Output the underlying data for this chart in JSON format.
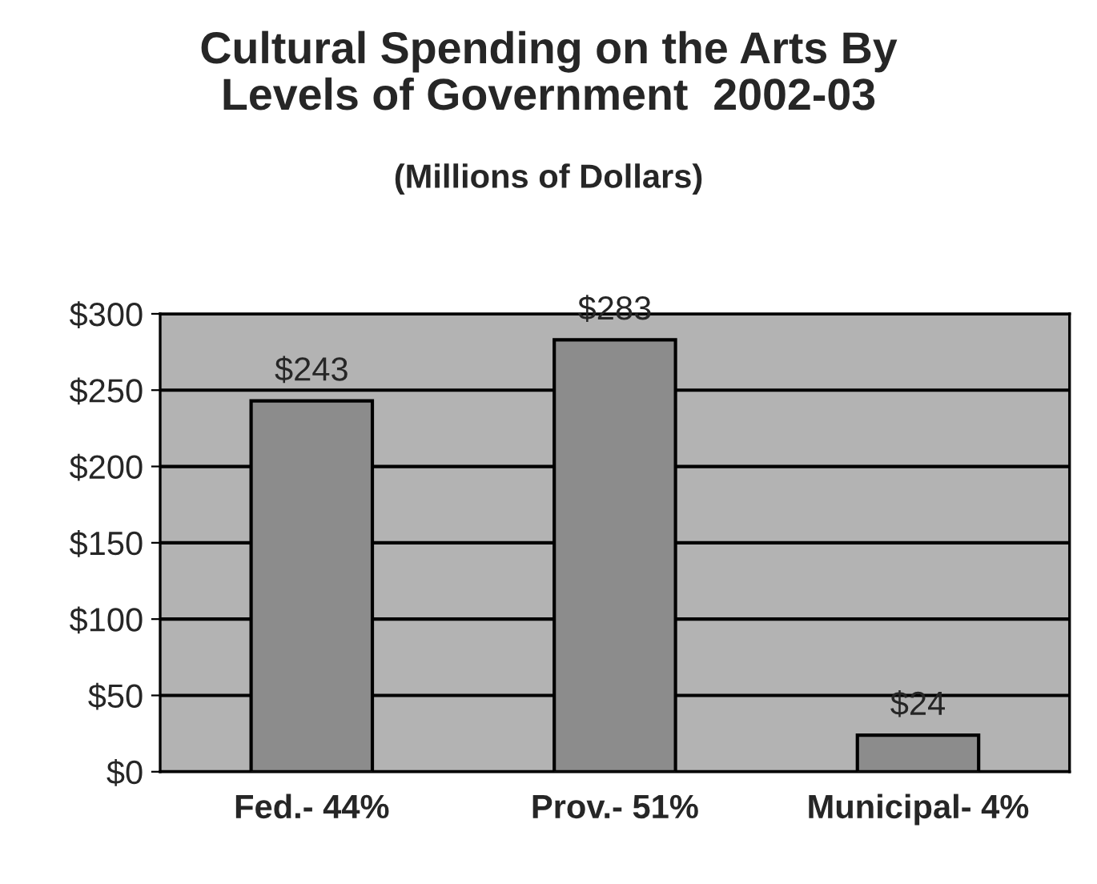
{
  "chart_data": {
    "type": "bar",
    "title": "Cultural Spending on the Arts By\nLevels of Government  2002-03",
    "subtitle": "(Millions of Dollars)",
    "categories": [
      "Fed.- 44%",
      "Prov.- 51%",
      "Municipal- 4%"
    ],
    "values": [
      243,
      283,
      24
    ],
    "value_labels": [
      "$243",
      "$283",
      "$24"
    ],
    "color": "#8c8c8c",
    "ylim": [
      0,
      300
    ],
    "yticks": [
      {
        "value": 0,
        "label": "$0"
      },
      {
        "value": 50,
        "label": "$50"
      },
      {
        "value": 100,
        "label": "$100"
      },
      {
        "value": 150,
        "label": "$150"
      },
      {
        "value": 200,
        "label": "$200"
      },
      {
        "value": 250,
        "label": "$250"
      },
      {
        "value": 300,
        "label": "$300"
      }
    ],
    "grid": "y"
  }
}
